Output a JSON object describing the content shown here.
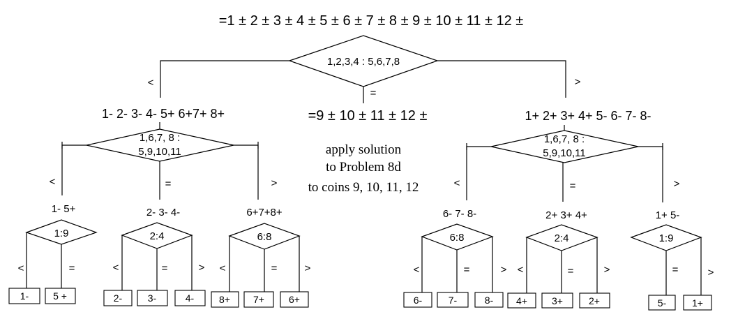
{
  "top_expression": "=1 ± 2 ± 3 ± 4 ± 5 ± 6 ± 7 ± 8 ± 9 ± 10 ± 11 ± 12 ±",
  "root_weighing": "1,2,3,4 : 5,6,7,8",
  "symbols": {
    "lt": "<",
    "eq": "=",
    "gt": ">"
  },
  "left_branch": {
    "outcome": "1- 2- 3- 4- 5+ 6+7+ 8+",
    "weighing": [
      "1,6,7, 8 :",
      "5,9,10,11"
    ],
    "children": [
      {
        "label": "1- 5+",
        "weighing": "1:9",
        "leaves": [
          "1-",
          "5 +"
        ]
      },
      {
        "label": "2- 3- 4-",
        "weighing": "2:4",
        "leaves": [
          "2-",
          "3-",
          "4-"
        ]
      },
      {
        "label": "6+7+8+",
        "weighing": "6:8",
        "leaves": [
          "8+",
          "7+",
          "6+"
        ]
      }
    ]
  },
  "middle_branch": {
    "outcome": "=9 ± 10 ± 11 ± 12 ±",
    "note": [
      "apply solution",
      "to Problem 8d",
      "to coins 9, 10, 11, 12"
    ]
  },
  "right_branch": {
    "outcome": "1+ 2+ 3+ 4+ 5- 6- 7- 8-",
    "weighing": [
      "1,6,7, 8 :",
      "5,9,10,11"
    ],
    "children": [
      {
        "label": "6- 7- 8-",
        "weighing": "6:8",
        "leaves": [
          "6-",
          "7-",
          "8-"
        ]
      },
      {
        "label": "2+ 3+ 4+",
        "weighing": "2:4",
        "leaves": [
          "4+",
          "3+",
          "2+"
        ]
      },
      {
        "label": "1+ 5-",
        "weighing": "1:9",
        "leaves": [
          "5-",
          "1+"
        ]
      }
    ]
  }
}
